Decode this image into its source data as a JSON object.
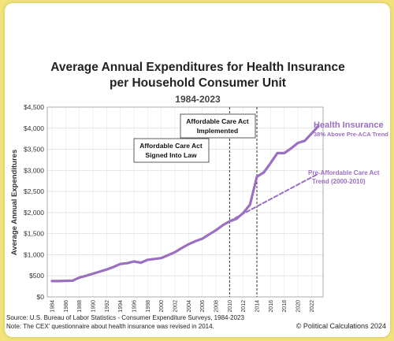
{
  "chart_data": {
    "type": "line",
    "title": "Average Annual Expenditures for Health Insurance",
    "subtitle": "per Household Consumer Unit",
    "period": "1984-2023",
    "ylabel": "Average Annual Expenditures",
    "xlabel": "",
    "ylim": [
      0,
      4500
    ],
    "yticks": [
      0,
      500,
      1000,
      1500,
      2000,
      2500,
      3000,
      3500,
      4000,
      4500
    ],
    "ytick_labels": [
      "$0",
      "$500",
      "$1,000",
      "$1,500",
      "$2,000",
      "$2,500",
      "$3,000",
      "$3,500",
      "$4,000",
      "$4,500"
    ],
    "xlim": [
      1984,
      2023
    ],
    "xticks": [
      "1984",
      "1986",
      "1988",
      "1990",
      "1992",
      "1994",
      "1996",
      "1998",
      "2000",
      "2002",
      "2004",
      "2006",
      "2008",
      "2010",
      "2012",
      "2014",
      "2016",
      "2018",
      "2020",
      "2022"
    ],
    "grid": true,
    "series": [
      {
        "name": "Health Insurance",
        "color": "#9b6fc1",
        "x": [
          1984,
          1985,
          1986,
          1987,
          1988,
          1989,
          1990,
          1991,
          1992,
          1993,
          1994,
          1995,
          1996,
          1997,
          1998,
          1999,
          2000,
          2001,
          2002,
          2003,
          2004,
          2005,
          2006,
          2007,
          2008,
          2009,
          2010,
          2011,
          2012,
          2013,
          2014,
          2015,
          2016,
          2017,
          2018,
          2019,
          2020,
          2021,
          2022,
          2023
        ],
        "values": [
          375,
          375,
          380,
          385,
          460,
          500,
          550,
          600,
          650,
          710,
          780,
          800,
          840,
          810,
          880,
          900,
          920,
          990,
          1060,
          1160,
          1250,
          1320,
          1380,
          1480,
          1580,
          1700,
          1790,
          1850,
          1990,
          2190,
          2850,
          2950,
          3170,
          3410,
          3410,
          3520,
          3650,
          3700,
          3870,
          4050
        ]
      },
      {
        "name": "Pre-Affordable Care Act Trend (2000-2010)",
        "color": "#9b6fc1",
        "style": "dashed",
        "x": [
          2010,
          2023
        ],
        "values": [
          1800,
          2920
        ]
      }
    ],
    "markers": [
      {
        "x": 2010,
        "label_lines": [
          "Affordable Care Act",
          "Signed Into Law"
        ]
      },
      {
        "x": 2014,
        "label_lines": [
          "Affordable Care Act",
          "Implemented"
        ]
      }
    ],
    "annotations": {
      "series_label": "Health Insurance",
      "series_note": "38% Above Pre-ACA Trend",
      "trend_label_lines": [
        "Pre-Affordable Care Act",
        "Trend (2000-2010)"
      ]
    }
  },
  "footer": {
    "source": "Source: U.S. Bureau of Labor Statistics - Consumer Expenditure Surveys, 1984-2023",
    "note": "Note: The CEX' questionnaire about health insurance was revised in 2014.",
    "copyright": "© Political Calculations 2024"
  }
}
